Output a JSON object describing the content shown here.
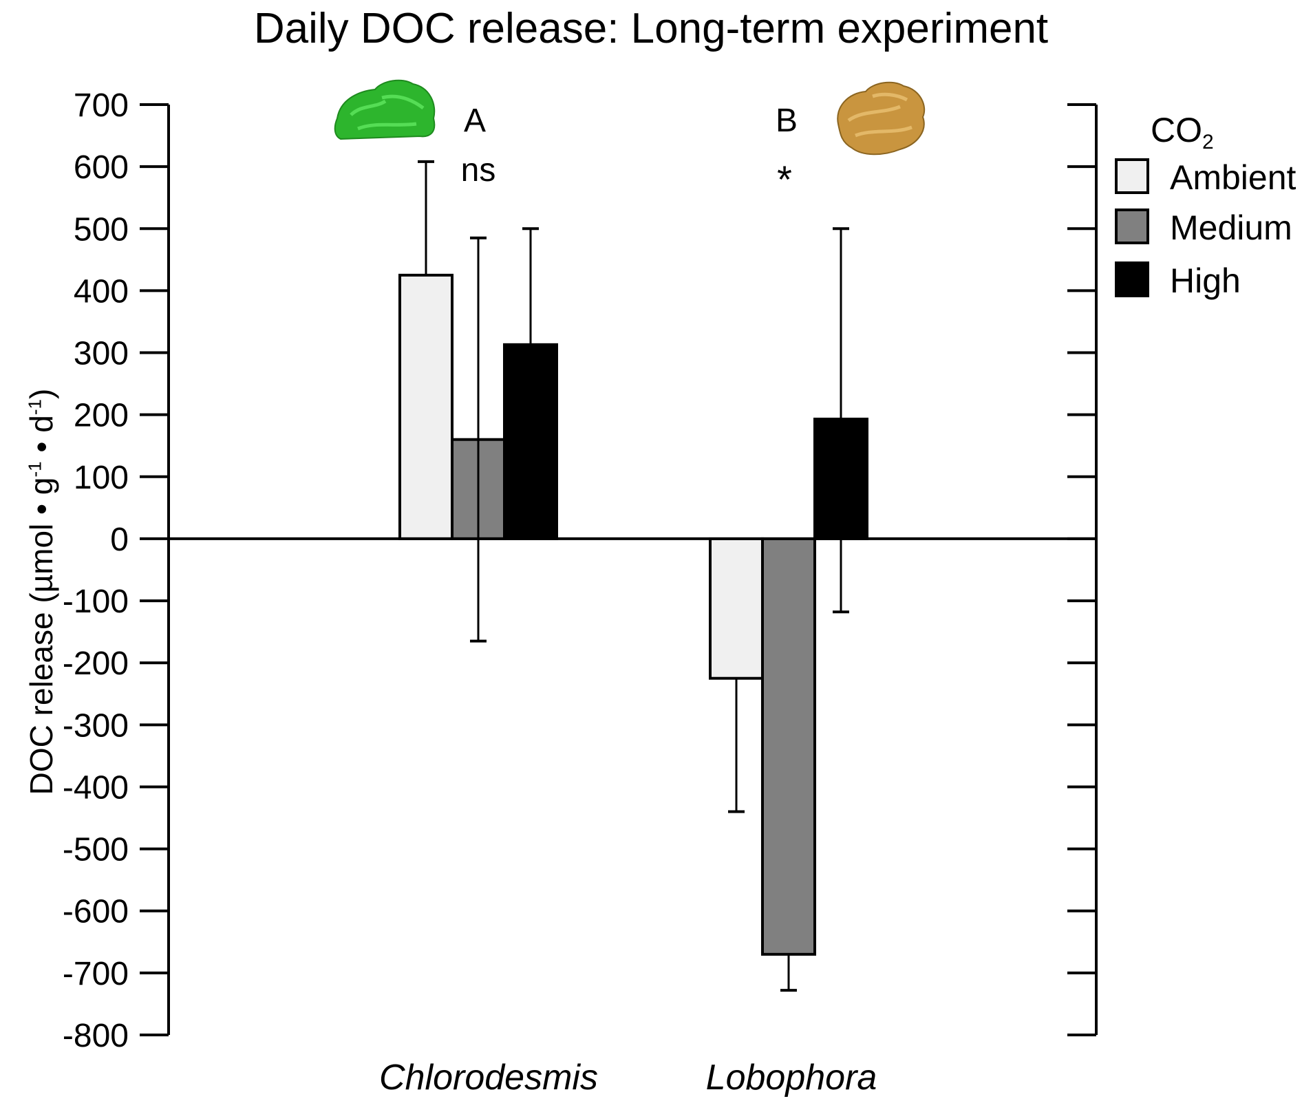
{
  "title": "Daily DOC release: Long-term experiment",
  "chart_data": {
    "type": "bar",
    "title": "Daily DOC release: Long-term experiment",
    "ylabel_text": "DOC release (µmol • g",
    "ylabel_parts": [
      "DOC release (µmol • g",
      "-1",
      " • d",
      "-1",
      ")"
    ],
    "categories": [
      "Chlorodesmis",
      "Lobophora"
    ],
    "series": [
      {
        "name": "Ambient",
        "color": "#f0f0f0",
        "values": [
          425,
          -225
        ],
        "error_upper": [
          608,
          -225
        ],
        "error_lower": [
          425,
          -440
        ]
      },
      {
        "name": "Medium",
        "color": "#808080",
        "values": [
          160,
          -670
        ],
        "error_upper": [
          485,
          -670
        ],
        "error_lower": [
          -165,
          -728
        ]
      },
      {
        "name": "High",
        "color": "#000000",
        "values": [
          313,
          193
        ],
        "error_upper": [
          500,
          500
        ],
        "error_lower": [
          313,
          -118
        ]
      }
    ],
    "ylim": [
      -800,
      700
    ],
    "yticks": [
      700,
      600,
      500,
      400,
      300,
      200,
      100,
      0,
      -100,
      -200,
      -300,
      -400,
      -500,
      -600,
      -700,
      -800
    ],
    "legend_title": "CO",
    "legend_title_sub": "2",
    "legend_position": "right",
    "annotations": [
      {
        "category": "Chlorodesmis",
        "letter": "A",
        "significance": "ns"
      },
      {
        "category": "Lobophora",
        "letter": "B",
        "significance": "*"
      }
    ],
    "icons": [
      "green-algae-icon",
      "brown-algae-icon"
    ],
    "grid": false
  }
}
